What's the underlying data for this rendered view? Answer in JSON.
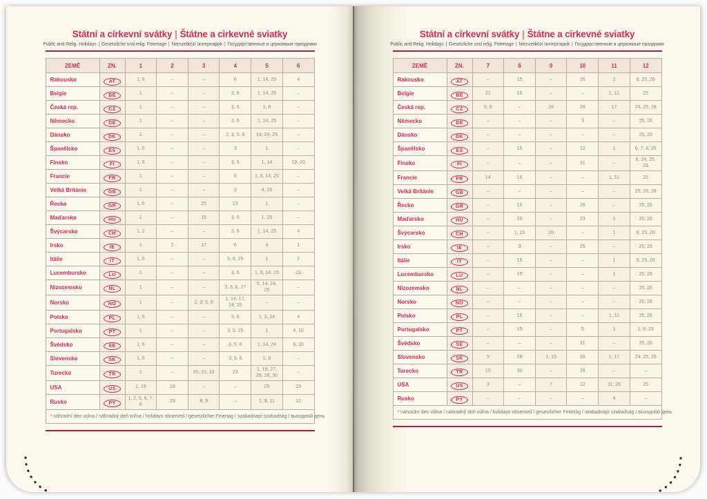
{
  "colors": {
    "accent": "#cf2d59",
    "rule": "#a62045",
    "cell_text": "#8f897c",
    "paper": "#fdf9ee",
    "border": "#b5ad9f"
  },
  "common": {
    "title_cs": "Státní a církevní svátky",
    "title_sep": "|",
    "title_sk": "Štátne a cirkevné sviatky",
    "subtitle_parts": [
      "Public and Relig. Holidays",
      "Gesetzliche und relig. Feiertage",
      "Nemzetközi ünnepnapok",
      "Государственные и церковные праздники"
    ],
    "footnote": "* náhradní den volna / náhradný deň voľna / holidays observed / gesetzlicher Feiertag / szabadnapi szabadság / выходной день"
  },
  "left_page": {
    "columns": [
      "ZEMĚ",
      "ZN.",
      "1",
      "2",
      "3",
      "4",
      "5",
      "6"
    ],
    "rows": [
      {
        "country": "Rakousko",
        "code": "AT",
        "values": [
          "1, 6",
          "–",
          "–",
          "6",
          "1, 14, 25",
          "4"
        ]
      },
      {
        "country": "Belgie",
        "code": "BE",
        "values": [
          "1",
          "–",
          "–",
          "3, 6",
          "1, 14, 25",
          "–"
        ]
      },
      {
        "country": "Česká rep.",
        "code": "CZ",
        "values": [
          "1",
          "–",
          "–",
          "3, 6",
          "1, 8",
          "–"
        ]
      },
      {
        "country": "Německo",
        "code": "DE",
        "values": [
          "1",
          "–",
          "–",
          "3, 6",
          "1, 14, 25",
          "–"
        ]
      },
      {
        "country": "Dánsko",
        "code": "DK",
        "values": [
          "1",
          "–",
          "–",
          "2, 3, 5, 6",
          "14, 24, 25",
          "–"
        ]
      },
      {
        "country": "Španělsko",
        "code": "ES",
        "values": [
          "1, 6",
          "–",
          "–",
          "3",
          "1",
          "–"
        ]
      },
      {
        "country": "Finsko",
        "code": "FI",
        "values": [
          "1, 6",
          "–",
          "–",
          "3, 6",
          "1, 14",
          "19, 20"
        ]
      },
      {
        "country": "Francie",
        "code": "FR",
        "values": [
          "1",
          "–",
          "–",
          "6",
          "1, 8, 14, 25",
          "–"
        ]
      },
      {
        "country": "Velká Británie",
        "code": "GB",
        "values": [
          "1",
          "–",
          "–",
          "3",
          "4, 25",
          "–"
        ]
      },
      {
        "country": "Řecko",
        "code": "GR",
        "values": [
          "1, 6",
          "–",
          "25",
          "13",
          "1",
          "–"
        ]
      },
      {
        "country": "Maďarsko",
        "code": "HU",
        "values": [
          "1",
          "–",
          "15",
          "3, 6",
          "1, 25",
          "–"
        ]
      },
      {
        "country": "Švýcarsko",
        "code": "CH",
        "values": [
          "1, 2",
          "–",
          "–",
          "3, 6",
          "1, 14, 25",
          "4"
        ]
      },
      {
        "country": "Irsko",
        "code": "IE",
        "values": [
          "1",
          "2",
          "17",
          "6",
          "4",
          "1"
        ]
      },
      {
        "country": "Itálie",
        "code": "IT",
        "values": [
          "1, 6",
          "–",
          "–",
          "5, 6, 25",
          "1",
          "2"
        ]
      },
      {
        "country": "Lucembursko",
        "code": "LU",
        "values": [
          "1",
          "–",
          "–",
          "3, 6",
          "1, 9, 14, 25",
          "23"
        ]
      },
      {
        "country": "Nizozemsko",
        "code": "NL",
        "values": [
          "1",
          "–",
          "–",
          "3, 5, 6, 27",
          "5, 14, 24, 25",
          "–"
        ]
      },
      {
        "country": "Norsko",
        "code": "NO",
        "values": [
          "1",
          "–",
          "2, 3, 5, 6",
          "1, 14, 17, 24, 25",
          "–",
          "–"
        ]
      },
      {
        "country": "Polsko",
        "code": "PL",
        "values": [
          "1, 6",
          "–",
          "–",
          "5, 6",
          "1, 3, 24",
          "4"
        ]
      },
      {
        "country": "Portugalsko",
        "code": "PT",
        "values": [
          "1",
          "–",
          "–",
          "3, 5, 25",
          "1",
          "4, 10"
        ]
      },
      {
        "country": "Švédsko",
        "code": "SE",
        "values": [
          "1, 6",
          "–",
          "–",
          "3, 5, 6",
          "1, 14, 24",
          "6, 20"
        ]
      },
      {
        "country": "Slovensko",
        "code": "SK",
        "values": [
          "1, 6",
          "–",
          "–",
          "3, 5, 6",
          "1, 8",
          "–"
        ]
      },
      {
        "country": "Turecko",
        "code": "TR",
        "values": [
          "1",
          "–",
          "20, 21, 22",
          "23",
          "1, 19, 27, 28, 29, 30",
          "–"
        ]
      },
      {
        "country": "USA",
        "code": "US",
        "values": [
          "1, 19",
          "16",
          "–",
          "–",
          "25",
          "19"
        ]
      },
      {
        "country": "Rusko",
        "code": "PY",
        "values": [
          "1, 2, 5, 6, 7, 8",
          "23",
          "8, 9",
          "–",
          "1, 9, 11",
          "12"
        ]
      }
    ]
  },
  "right_page": {
    "columns": [
      "ZEMĚ",
      "ZN.",
      "7",
      "8",
      "9",
      "10",
      "11",
      "12"
    ],
    "rows": [
      {
        "country": "Rakousko",
        "code": "AT",
        "values": [
          "–",
          "15",
          "–",
          "26",
          "1",
          "8, 25, 26"
        ]
      },
      {
        "country": "Belgie",
        "code": "BE",
        "values": [
          "21",
          "15",
          "–",
          "–",
          "1, 11",
          "25"
        ]
      },
      {
        "country": "Česká rep.",
        "code": "CZ",
        "values": [
          "5, 6",
          "–",
          "28",
          "28",
          "17",
          "24, 25, 26"
        ]
      },
      {
        "country": "Německo",
        "code": "DE",
        "values": [
          "–",
          "–",
          "–",
          "3",
          "–",
          "25, 26"
        ]
      },
      {
        "country": "Dánsko",
        "code": "DK",
        "values": [
          "–",
          "–",
          "–",
          "–",
          "–",
          "25, 26"
        ]
      },
      {
        "country": "Španělsko",
        "code": "ES",
        "values": [
          "–",
          "15",
          "–",
          "12",
          "1",
          "6, 7, 8, 25"
        ]
      },
      {
        "country": "Finsko",
        "code": "FI",
        "values": [
          "–",
          "–",
          "–",
          "31",
          "–",
          "6, 24, 25, 26"
        ]
      },
      {
        "country": "Francie",
        "code": "FR",
        "values": [
          "14",
          "15",
          "–",
          "–",
          "1, 11",
          "25"
        ]
      },
      {
        "country": "Velká Británie",
        "code": "GB",
        "values": [
          "–",
          "–",
          "–",
          "–",
          "–",
          "25, 26, 28"
        ]
      },
      {
        "country": "Řecko",
        "code": "GR",
        "values": [
          "–",
          "15",
          "–",
          "28",
          "–",
          "25, 26"
        ]
      },
      {
        "country": "Maďarsko",
        "code": "HU",
        "values": [
          "–",
          "20",
          "–",
          "23",
          "1",
          "25, 26"
        ]
      },
      {
        "country": "Švýcarsko",
        "code": "CH",
        "values": [
          "–",
          "1, 15",
          "20",
          "–",
          "1",
          "8, 25, 26"
        ]
      },
      {
        "country": "Irsko",
        "code": "IE",
        "values": [
          "–",
          "3",
          "–",
          "26",
          "–",
          "25, 26"
        ]
      },
      {
        "country": "Itálie",
        "code": "IT",
        "values": [
          "–",
          "15",
          "–",
          "–",
          "1",
          "8, 25, 26"
        ]
      },
      {
        "country": "Lucembursko",
        "code": "LU",
        "values": [
          "–",
          "15",
          "–",
          "–",
          "1",
          "25, 26"
        ]
      },
      {
        "country": "Nizozemsko",
        "code": "NL",
        "values": [
          "–",
          "–",
          "–",
          "–",
          "–",
          "25, 26"
        ]
      },
      {
        "country": "Norsko",
        "code": "NO",
        "values": [
          "–",
          "–",
          "–",
          "–",
          "–",
          "25, 26"
        ]
      },
      {
        "country": "Polsko",
        "code": "PL",
        "values": [
          "–",
          "15",
          "–",
          "–",
          "1, 11",
          "25, 26"
        ]
      },
      {
        "country": "Portugalsko",
        "code": "PT",
        "values": [
          "–",
          "15",
          "–",
          "5",
          "1",
          "1, 8, 25"
        ]
      },
      {
        "country": "Švédsko",
        "code": "SE",
        "values": [
          "–",
          "–",
          "–",
          "31",
          "–",
          "25, 26"
        ]
      },
      {
        "country": "Slovensko",
        "code": "SK",
        "values": [
          "5",
          "29",
          "1, 15",
          "28",
          "1, 17",
          "24, 25, 26"
        ]
      },
      {
        "country": "Turecko",
        "code": "TR",
        "values": [
          "15",
          "30",
          "–",
          "29",
          "–",
          "–"
        ]
      },
      {
        "country": "USA",
        "code": "US",
        "values": [
          "3",
          "–",
          "7",
          "12",
          "11, 26",
          "25"
        ]
      },
      {
        "country": "Rusko",
        "code": "PY",
        "values": [
          "–",
          "–",
          "–",
          "–",
          "4",
          "–"
        ]
      }
    ]
  }
}
